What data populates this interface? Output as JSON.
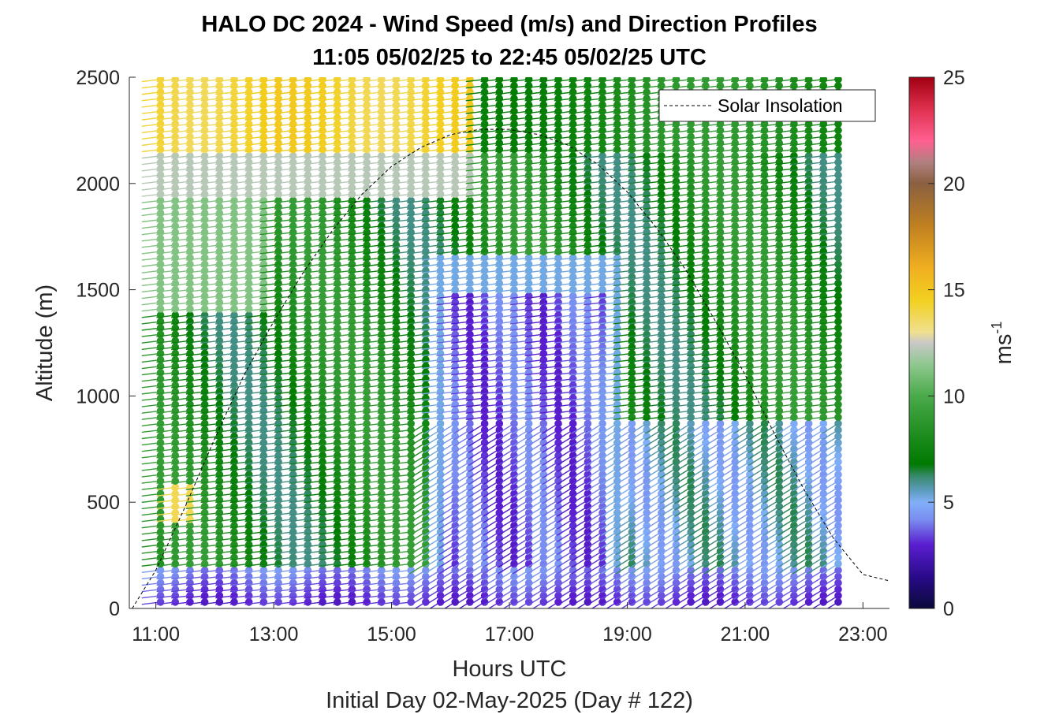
{
  "chart_data": {
    "type": "wind-barb-scatter",
    "title": "HALO DC 2024 - Wind Speed (m/s) and Direction Profiles",
    "subtitle": "11:05 05/02/25 to 22:45 05/02/25  UTC",
    "xlabel": "Hours UTC",
    "xlabel2": "Initial Day 02-May-2025 (Day # 122)",
    "ylabel": "Altitude (m)",
    "colorbar_label": "ms",
    "colorbar_label_sup": "-1",
    "xlim": [
      10.55,
      23.45
    ],
    "ylim": [
      0,
      2500
    ],
    "clim": [
      0,
      25
    ],
    "x_ticks": [
      11,
      13,
      15,
      17,
      19,
      21,
      23
    ],
    "x_tick_labels": [
      "11:00",
      "13:00",
      "15:00",
      "17:00",
      "19:00",
      "21:00",
      "23:00"
    ],
    "y_ticks": [
      0,
      500,
      1000,
      1500,
      2000,
      2500
    ],
    "y_tick_labels": [
      "0",
      "500",
      "1000",
      "1500",
      "2000",
      "2500"
    ],
    "colorbar_ticks": [
      0,
      5,
      10,
      15,
      20,
      25
    ],
    "colorbar_tick_labels": [
      "0",
      "5",
      "10",
      "15",
      "20",
      "25"
    ],
    "colormap_stops": [
      {
        "v": 0.0,
        "color": "#0a0a3a"
      },
      {
        "v": 1.5,
        "color": "#2a0a8a"
      },
      {
        "v": 3.0,
        "color": "#5a1ed0"
      },
      {
        "v": 4.2,
        "color": "#7a8ef0"
      },
      {
        "v": 5.0,
        "color": "#80b0f8"
      },
      {
        "v": 5.6,
        "color": "#5a9ab8"
      },
      {
        "v": 6.2,
        "color": "#3a8a70"
      },
      {
        "v": 6.8,
        "color": "#007a00"
      },
      {
        "v": 8.0,
        "color": "#1a8a1a"
      },
      {
        "v": 10.0,
        "color": "#4aaa4a"
      },
      {
        "v": 11.5,
        "color": "#90c890"
      },
      {
        "v": 12.5,
        "color": "#c8c8c8"
      },
      {
        "v": 13.0,
        "color": "#f0e090"
      },
      {
        "v": 14.5,
        "color": "#f2d020"
      },
      {
        "v": 16.0,
        "color": "#f0b020"
      },
      {
        "v": 18.0,
        "color": "#c08020"
      },
      {
        "v": 20.0,
        "color": "#8a6040"
      },
      {
        "v": 21.0,
        "color": "#b08080"
      },
      {
        "v": 22.0,
        "color": "#ff6090"
      },
      {
        "v": 23.5,
        "color": "#e03050"
      },
      {
        "v": 25.0,
        "color": "#a00010"
      }
    ],
    "profile_times": {
      "start": 11.08,
      "end": 22.75,
      "step": 0.25
    },
    "profile_altitudes": {
      "start": 30,
      "end": 2500,
      "step": 30
    },
    "legend": {
      "entries": [
        {
          "label": "Solar Insolation",
          "style": "dashed",
          "color": "#000000"
        }
      ],
      "position": "top-right"
    },
    "solar_insolation": {
      "x": [
        10.6,
        11.0,
        11.5,
        12.0,
        12.5,
        13.0,
        13.5,
        14.0,
        14.5,
        15.0,
        15.5,
        16.0,
        16.5,
        17.0,
        17.5,
        18.0,
        18.5,
        19.0,
        19.5,
        20.0,
        20.5,
        21.0,
        21.5,
        22.0,
        22.5,
        23.0,
        23.45
      ],
      "y": [
        0,
        180,
        480,
        800,
        1100,
        1350,
        1580,
        1780,
        1950,
        2080,
        2170,
        2230,
        2255,
        2255,
        2230,
        2180,
        2090,
        1960,
        1790,
        1590,
        1350,
        1100,
        820,
        560,
        330,
        160,
        130
      ]
    },
    "wind_field_description_keys": {
      "speed_bands": [
        {
          "x": [
            11.0,
            16.4
          ],
          "y": [
            2150,
            2500
          ],
          "speed": 14.5
        },
        {
          "x": [
            11.0,
            16.4
          ],
          "y": [
            1950,
            2150
          ],
          "speed": 12.3
        },
        {
          "x": [
            11.3,
            11.8
          ],
          "y": [
            400,
            580
          ],
          "speed": 13.8
        },
        {
          "x": [
            15.6,
            19.0
          ],
          "y": [
            200,
            1650
          ],
          "speed": 4.2
        },
        {
          "x": [
            11.0,
            23.0
          ],
          "y": [
            0,
            200
          ],
          "speed": 3.0
        }
      ]
    }
  }
}
